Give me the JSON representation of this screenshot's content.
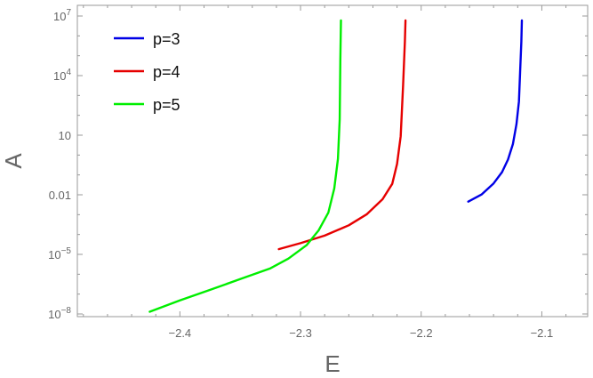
{
  "chart_data": {
    "type": "line",
    "title": "",
    "xlabel": "E",
    "ylabel": "A",
    "xscale": "linear",
    "yscale": "log",
    "xlim": [
      -2.485,
      -2.062
    ],
    "ylim": [
      1e-08,
      10000000.0
    ],
    "xticks": [
      {
        "value": -2.4,
        "label": "-2.4"
      },
      {
        "value": -2.3,
        "label": "-2.3"
      },
      {
        "value": -2.2,
        "label": "-2.2"
      },
      {
        "value": -2.1,
        "label": "-2.1"
      }
    ],
    "yticks": [
      {
        "value": 1e-08,
        "base": "10",
        "exp": "-8",
        "label": ""
      },
      {
        "value": 1e-05,
        "base": "10",
        "exp": "-5",
        "label": ""
      },
      {
        "value": 0.01,
        "base": "",
        "exp": "",
        "label": "0.01"
      },
      {
        "value": 10,
        "base": "",
        "exp": "",
        "label": "10"
      },
      {
        "value": 10000.0,
        "base": "10",
        "exp": "4",
        "label": ""
      },
      {
        "value": 10000000.0,
        "base": "10",
        "exp": "7",
        "label": ""
      }
    ],
    "grid": false,
    "legend": "top-left",
    "series": [
      {
        "name": "p=3",
        "color": "#0000e6",
        "x": [
          -2.161,
          -2.15,
          -2.14,
          -2.133,
          -2.128,
          -2.124,
          -2.121,
          -2.119,
          -2.118,
          -2.117,
          -2.1165
        ],
        "y": [
          0.0045,
          0.0103,
          0.0373,
          0.138,
          0.594,
          3.57,
          35.7,
          497,
          14700,
          500000,
          6000000
        ]
      },
      {
        "name": "p=4",
        "color": "#e60000",
        "x": [
          -2.318,
          -2.3,
          -2.28,
          -2.26,
          -2.245,
          -2.232,
          -2.224,
          -2.22,
          -2.217,
          -2.215,
          -2.2135,
          -2.213
        ],
        "y": [
          1.84e-05,
          3.68e-05,
          8.81e-05,
          0.000291,
          0.00106,
          0.00597,
          0.0357,
          0.357,
          8.92,
          3270,
          496000,
          6000000
        ]
      },
      {
        "name": "p=5",
        "color": "#00ee00",
        "x": [
          -2.425,
          -2.4,
          -2.375,
          -2.35,
          -2.325,
          -2.31,
          -2.295,
          -2.285,
          -2.277,
          -2.272,
          -2.269,
          -2.2675,
          -2.267,
          -2.2665
        ],
        "y": [
          1.3e-08,
          4.8e-08,
          1.64e-07,
          5.71e-07,
          1.99e-06,
          6.13e-06,
          2.88e-05,
          0.000161,
          0.00126,
          0.0211,
          0.637,
          63.6,
          58700,
          6000000
        ]
      }
    ]
  }
}
